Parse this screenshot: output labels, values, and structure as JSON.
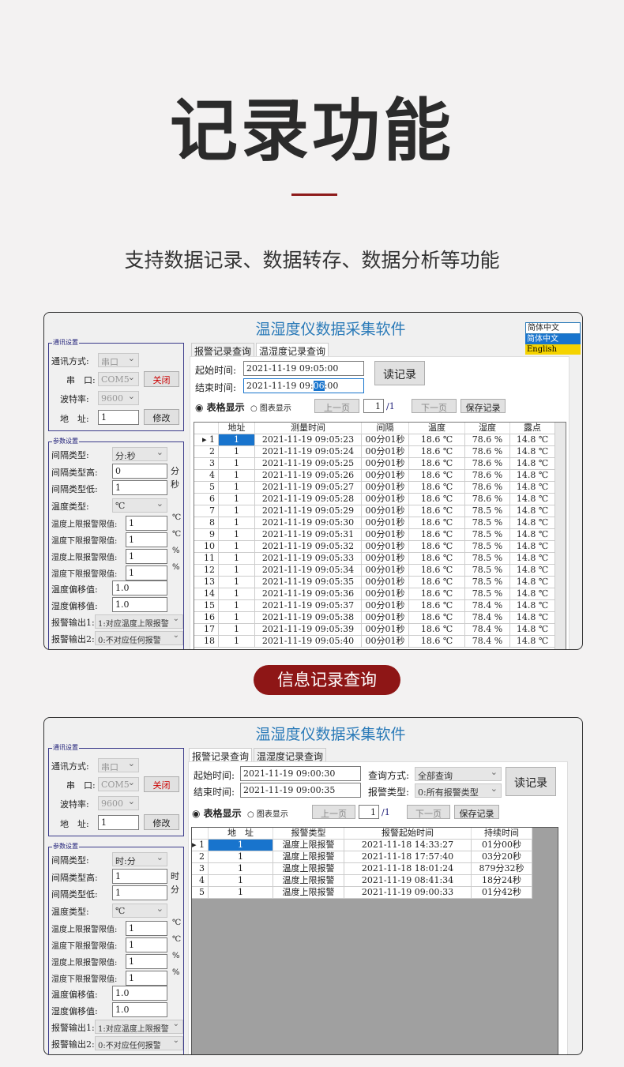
{
  "heading": "记录功能",
  "subheading": "支持数据记录、数据转存、数据分析等功能",
  "section_label": "信息记录查询",
  "colors": {
    "accent": "#8e1616",
    "title_blue": "#2a7ab8",
    "selection": "#1874cd"
  },
  "window1": {
    "title": "温湿度仪数据采集软件",
    "language": {
      "selected": "简体中文",
      "options": [
        "简体中文",
        "English"
      ]
    },
    "comm": {
      "group": "通讯设置",
      "mode_label": "通讯方式:",
      "mode": "串口",
      "port_label": "串　口:",
      "port": "COM5",
      "close_btn": "关闭",
      "baud_label": "波特率:",
      "baud": "9600",
      "addr_label": "地　址:",
      "addr": "1",
      "modify_btn": "修改"
    },
    "params": {
      "group": "参数设置",
      "interval_type_label": "间隔类型:",
      "interval_type": "分:秒",
      "high_label": "间隔类型高:",
      "high": "0",
      "high_unit": "分",
      "low_label": "间隔类型低:",
      "low": "1",
      "low_unit": "秒",
      "temp_type_label": "温度类型:",
      "temp_type": "℃",
      "limits": [
        {
          "label": "温度上限报警限值:",
          "value": "1",
          "unit": "℃"
        },
        {
          "label": "温度下限报警限值:",
          "value": "1",
          "unit": "℃"
        },
        {
          "label": "湿度上限报警限值:",
          "value": "1",
          "unit": "%"
        },
        {
          "label": "湿度下限报警限值:",
          "value": "1",
          "unit": "%"
        }
      ],
      "temp_offset_label": "温度偏移值:",
      "temp_offset": "1.0",
      "hum_offset_label": "湿度偏移值:",
      "hum_offset": "1.0",
      "out1_label": "报警输出1:",
      "out1": "1:对应温度上限报警",
      "out2_label": "报警输出2:",
      "out2": "0:不对应任何报警"
    },
    "tabs": [
      "报警记录查询",
      "温湿度记录查询"
    ],
    "start_label": "起始时间:",
    "start": "2021-11-19 09:05:00",
    "end_label": "结束时间:",
    "end_prefix": "2021-11-19 09:",
    "end_sel": "06",
    "end_suffix": ":00",
    "read_btn": "读记录",
    "radio_table": "表格显示",
    "radio_chart": "图表显示",
    "prev": "上一页",
    "page": "1",
    "pages": "/1",
    "next": "下一页",
    "save": "保存记录",
    "columns": [
      "",
      "地址",
      "测量时间",
      "间隔",
      "温度",
      "湿度",
      "露点"
    ],
    "rows": [
      [
        "1",
        "1",
        "2021-11-19  09:05:23",
        "00分01秒",
        "18.6 ℃",
        "78.6 %",
        "14.8 ℃"
      ],
      [
        "2",
        "1",
        "2021-11-19  09:05:24",
        "00分01秒",
        "18.6 ℃",
        "78.6 %",
        "14.8 ℃"
      ],
      [
        "3",
        "1",
        "2021-11-19  09:05:25",
        "00分01秒",
        "18.6 ℃",
        "78.6 %",
        "14.8 ℃"
      ],
      [
        "4",
        "1",
        "2021-11-19  09:05:26",
        "00分01秒",
        "18.6 ℃",
        "78.6 %",
        "14.8 ℃"
      ],
      [
        "5",
        "1",
        "2021-11-19  09:05:27",
        "00分01秒",
        "18.6 ℃",
        "78.6 %",
        "14.8 ℃"
      ],
      [
        "6",
        "1",
        "2021-11-19  09:05:28",
        "00分01秒",
        "18.6 ℃",
        "78.6 %",
        "14.8 ℃"
      ],
      [
        "7",
        "1",
        "2021-11-19  09:05:29",
        "00分01秒",
        "18.6 ℃",
        "78.5 %",
        "14.8 ℃"
      ],
      [
        "8",
        "1",
        "2021-11-19  09:05:30",
        "00分01秒",
        "18.6 ℃",
        "78.5 %",
        "14.8 ℃"
      ],
      [
        "9",
        "1",
        "2021-11-19  09:05:31",
        "00分01秒",
        "18.6 ℃",
        "78.5 %",
        "14.8 ℃"
      ],
      [
        "10",
        "1",
        "2021-11-19  09:05:32",
        "00分01秒",
        "18.6 ℃",
        "78.5 %",
        "14.8 ℃"
      ],
      [
        "11",
        "1",
        "2021-11-19  09:05:33",
        "00分01秒",
        "18.6 ℃",
        "78.5 %",
        "14.8 ℃"
      ],
      [
        "12",
        "1",
        "2021-11-19  09:05:34",
        "00分01秒",
        "18.6 ℃",
        "78.5 %",
        "14.8 ℃"
      ],
      [
        "13",
        "1",
        "2021-11-19  09:05:35",
        "00分01秒",
        "18.6 ℃",
        "78.5 %",
        "14.8 ℃"
      ],
      [
        "14",
        "1",
        "2021-11-19  09:05:36",
        "00分01秒",
        "18.6 ℃",
        "78.5 %",
        "14.8 ℃"
      ],
      [
        "15",
        "1",
        "2021-11-19  09:05:37",
        "00分01秒",
        "18.6 ℃",
        "78.4 %",
        "14.8 ℃"
      ],
      [
        "16",
        "1",
        "2021-11-19  09:05:38",
        "00分01秒",
        "18.6 ℃",
        "78.4 %",
        "14.8 ℃"
      ],
      [
        "17",
        "1",
        "2021-11-19  09:05:39",
        "00分01秒",
        "18.6 ℃",
        "78.4 %",
        "14.8 ℃"
      ],
      [
        "18",
        "1",
        "2021-11-19  09:05:40",
        "00分01秒",
        "18.6 ℃",
        "78.4 %",
        "14.8 ℃"
      ]
    ]
  },
  "window2": {
    "title": "温湿度仪数据采集软件",
    "comm": {
      "group": "通讯设置",
      "mode_label": "通讯方式:",
      "mode": "串口",
      "port_label": "串　口:",
      "port": "COM5",
      "close_btn": "关闭",
      "baud_label": "波特率:",
      "baud": "9600",
      "addr_label": "地　址:",
      "addr": "1",
      "modify_btn": "修改"
    },
    "params": {
      "group": "参数设置",
      "interval_type_label": "间隔类型:",
      "interval_type": "时:分",
      "high_label": "间隔类型高:",
      "high": "1",
      "high_unit": "时",
      "low_label": "间隔类型低:",
      "low": "1",
      "low_unit": "分",
      "temp_type_label": "温度类型:",
      "temp_type": "℃",
      "limits": [
        {
          "label": "温度上限报警限值:",
          "value": "1",
          "unit": "℃"
        },
        {
          "label": "温度下限报警限值:",
          "value": "1",
          "unit": "℃"
        },
        {
          "label": "湿度上限报警限值:",
          "value": "1",
          "unit": "%"
        },
        {
          "label": "湿度下限报警限值:",
          "value": "1",
          "unit": "%"
        }
      ],
      "temp_offset_label": "温度偏移值:",
      "temp_offset": "1.0",
      "hum_offset_label": "湿度偏移值:",
      "hum_offset": "1.0",
      "out1_label": "报警输出1:",
      "out1": "1:对应温度上限报警",
      "out2_label": "报警输出2:",
      "out2": "0:不对应任何报警"
    },
    "tabs": [
      "报警记录查询",
      "温湿度记录查询"
    ],
    "start_label": "起始时间:",
    "start": "2021-11-19 09:00:30",
    "end_label": "结束时间:",
    "end": "2021-11-19 09:00:35",
    "query_label": "查询方式:",
    "query": "全部查询",
    "alarm_type_label": "报警类型:",
    "alarm_type": "0:所有报警类型",
    "read_btn": "读记录",
    "radio_table": "表格显示",
    "radio_chart": "图表显示",
    "prev": "上一页",
    "page": "1",
    "pages": "/1",
    "next": "下一页",
    "save": "保存记录",
    "columns": [
      "",
      "地　址",
      "报警类型",
      "报警起始时间",
      "持续时间"
    ],
    "rows": [
      [
        "1",
        "1",
        "温度上限报警",
        "2021-11-18  14:33:27",
        "01分00秒"
      ],
      [
        "2",
        "1",
        "温度上限报警",
        "2021-11-18  17:57:40",
        "03分20秒"
      ],
      [
        "3",
        "1",
        "温度上限报警",
        "2021-11-18  18:01:24",
        "879分32秒"
      ],
      [
        "4",
        "1",
        "温度上限报警",
        "2021-11-19  08:41:34",
        "18分24秒"
      ],
      [
        "5",
        "1",
        "温度上限报警",
        "2021-11-19  09:00:33",
        "01分42秒"
      ]
    ]
  }
}
